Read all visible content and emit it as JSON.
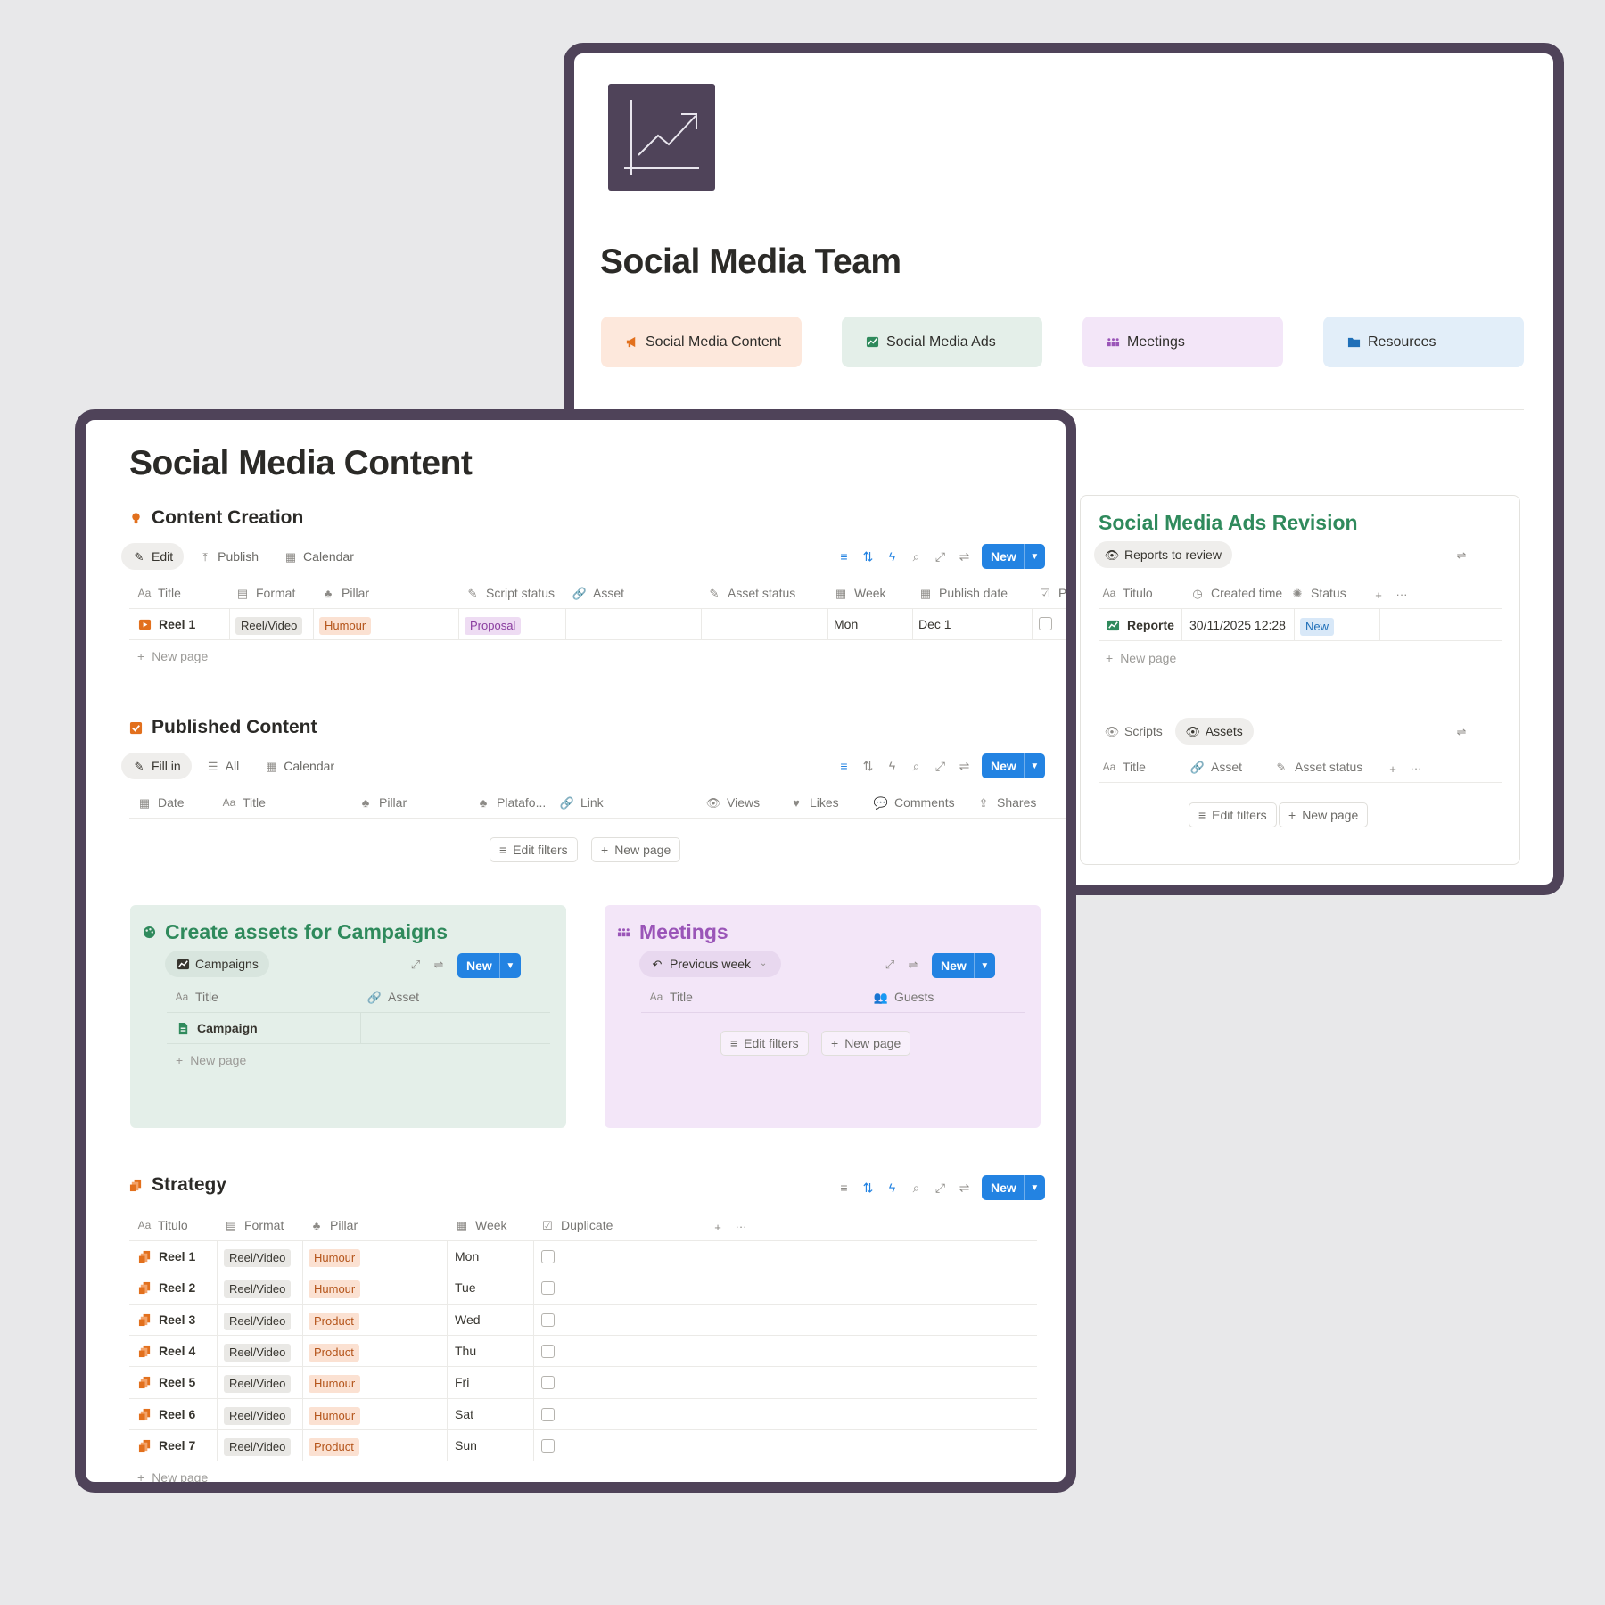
{
  "team_page": {
    "title": "Social Media Team",
    "nav_cards": [
      {
        "label": "Social Media Content",
        "icon": "megaphone-icon",
        "bg": "#fde8dc"
      },
      {
        "label": "Social Media Ads",
        "icon": "chart-icon",
        "bg": "#e4efe9"
      },
      {
        "label": "Meetings",
        "icon": "people-icon",
        "bg": "#f3e6f8"
      },
      {
        "label": "Resources",
        "icon": "folder-icon",
        "bg": "#e2eef9"
      }
    ],
    "ads_revision": {
      "title": "Social Media Ads Revision",
      "view_tab": "Reports to review",
      "columns": [
        "Titulo",
        "Created time",
        "Status"
      ],
      "rows": [
        {
          "title": "Reporte",
          "created": "30/11/2025 12:28",
          "status": "New"
        }
      ],
      "new_page": "New page"
    },
    "scripts_assets": {
      "tabs": [
        "Scripts",
        "Assets"
      ],
      "columns": [
        "Title",
        "Asset",
        "Asset status"
      ],
      "edit_filters": "Edit filters",
      "new_page": "New page"
    }
  },
  "content_page": {
    "title": "Social Media Content",
    "content_creation": {
      "heading": "Content Creation",
      "tabs": [
        "Edit",
        "Publish",
        "Calendar"
      ],
      "new_label": "New",
      "columns": [
        "Title",
        "Format",
        "Pillar",
        "Script status",
        "Asset",
        "Asset status",
        "Week",
        "Publish date",
        "P"
      ],
      "rows": [
        {
          "title": "Reel 1",
          "format": "Reel/Video",
          "pillar": "Humour",
          "script_status": "Proposal",
          "week": "Mon",
          "publish_date": "Dec 1"
        }
      ],
      "new_page": "New page"
    },
    "published_content": {
      "heading": "Published Content",
      "tabs": [
        "Fill in",
        "All",
        "Calendar"
      ],
      "new_label": "New",
      "columns": [
        "Date",
        "Title",
        "Pillar",
        "Platafo...",
        "Link",
        "Views",
        "Likes",
        "Comments",
        "Shares"
      ],
      "edit_filters": "Edit filters",
      "new_page": "New page"
    },
    "campaigns": {
      "heading": "Create assets for Campaigns",
      "tab": "Campaigns",
      "new_label": "New",
      "columns": [
        "Title",
        "Asset"
      ],
      "rows": [
        {
          "title": "Campaign"
        }
      ],
      "new_page": "New page"
    },
    "meetings": {
      "heading": "Meetings",
      "tab": "Previous week",
      "new_label": "New",
      "columns": [
        "Title",
        "Guests"
      ],
      "edit_filters": "Edit filters",
      "new_page": "New page"
    },
    "strategy": {
      "heading": "Strategy",
      "new_label": "New",
      "columns": [
        "Titulo",
        "Format",
        "Pillar",
        "Week",
        "Duplicate"
      ],
      "rows": [
        {
          "title": "Reel 1",
          "format": "Reel/Video",
          "pillar": "Humour",
          "week": "Mon"
        },
        {
          "title": "Reel 2",
          "format": "Reel/Video",
          "pillar": "Humour",
          "week": "Tue"
        },
        {
          "title": "Reel 3",
          "format": "Reel/Video",
          "pillar": "Product",
          "week": "Wed"
        },
        {
          "title": "Reel 4",
          "format": "Reel/Video",
          "pillar": "Product",
          "week": "Thu"
        },
        {
          "title": "Reel 5",
          "format": "Reel/Video",
          "pillar": "Humour",
          "week": "Fri"
        },
        {
          "title": "Reel 6",
          "format": "Reel/Video",
          "pillar": "Humour",
          "week": "Sat"
        },
        {
          "title": "Reel 7",
          "format": "Reel/Video",
          "pillar": "Product",
          "week": "Sun"
        }
      ],
      "new_page": "New page"
    }
  },
  "colors": {
    "frame": "#4f4359",
    "accent_blue": "#2383e2",
    "green_heading": "#2f8a5c",
    "purple_heading": "#9a55b8",
    "orange_icon": "#e2701d"
  }
}
